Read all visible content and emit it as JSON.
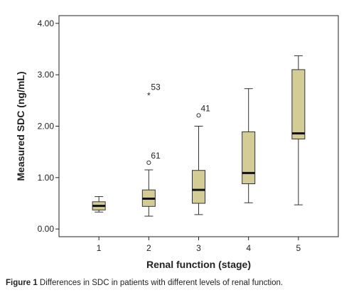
{
  "chart_data": {
    "type": "box",
    "xlabel": "Renal function (stage)",
    "ylabel": "Measured SDC (ng/mL)",
    "categories": [
      "1",
      "2",
      "3",
      "4",
      "5"
    ],
    "ylim": [
      -0.15,
      4.15
    ],
    "yticks": [
      0.0,
      1.0,
      2.0,
      3.0,
      4.0
    ],
    "ytick_labels": [
      "0.00",
      "1.00",
      "2.00",
      "3.00",
      "4.00"
    ],
    "grid": false,
    "legend": "none",
    "box_fill": "#d4cc95",
    "box_stroke": "#333333",
    "median_color": "#111111",
    "boxes": [
      {
        "category": "1",
        "whisker_low": 0.33,
        "q1": 0.37,
        "median": 0.45,
        "q3": 0.53,
        "whisker_high": 0.63
      },
      {
        "category": "2",
        "whisker_low": 0.25,
        "q1": 0.44,
        "median": 0.59,
        "q3": 0.76,
        "whisker_high": 1.15
      },
      {
        "category": "3",
        "whisker_low": 0.28,
        "q1": 0.5,
        "median": 0.76,
        "q3": 1.14,
        "whisker_high": 2.0
      },
      {
        "category": "4",
        "whisker_low": 0.51,
        "q1": 0.88,
        "median": 1.09,
        "q3": 1.89,
        "whisker_high": 2.73
      },
      {
        "category": "5",
        "whisker_low": 0.47,
        "q1": 1.75,
        "median": 1.86,
        "q3": 3.1,
        "whisker_high": 3.37
      }
    ],
    "outliers": [
      {
        "category": "2",
        "value": 1.29,
        "marker": "circle",
        "label": "61"
      },
      {
        "category": "2",
        "value": 2.62,
        "marker": "star",
        "label": "53"
      },
      {
        "category": "3",
        "value": 2.21,
        "marker": "circle",
        "label": "41"
      }
    ]
  },
  "caption": {
    "prefix": "Figure 1",
    "text": " Differences in SDC in patients with different levels of renal function."
  }
}
